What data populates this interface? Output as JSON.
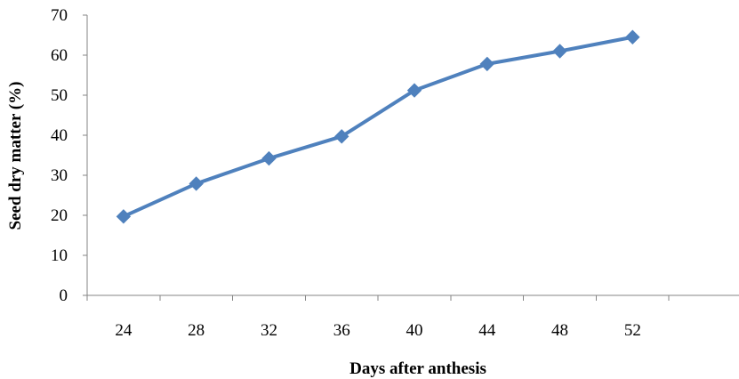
{
  "chart_data": {
    "type": "line",
    "title": "",
    "xlabel": "Days after anthesis",
    "ylabel": "Seed dry matter (%)",
    "categories": [
      "24",
      "28",
      "32",
      "36",
      "40",
      "44",
      "48",
      "52"
    ],
    "x": [
      24,
      28,
      32,
      36,
      40,
      44,
      48,
      52
    ],
    "series": [
      {
        "values": [
          19.7,
          27.9,
          34.2,
          39.7,
          51.2,
          57.8,
          61.0,
          64.5
        ],
        "color": "#4F81BD",
        "marker": "diamond"
      }
    ],
    "ylim": [
      0,
      70
    ],
    "yticks": [
      0,
      10,
      20,
      30,
      40,
      50,
      60,
      70
    ],
    "category_slots": 9,
    "grid": false,
    "legend": "none"
  }
}
